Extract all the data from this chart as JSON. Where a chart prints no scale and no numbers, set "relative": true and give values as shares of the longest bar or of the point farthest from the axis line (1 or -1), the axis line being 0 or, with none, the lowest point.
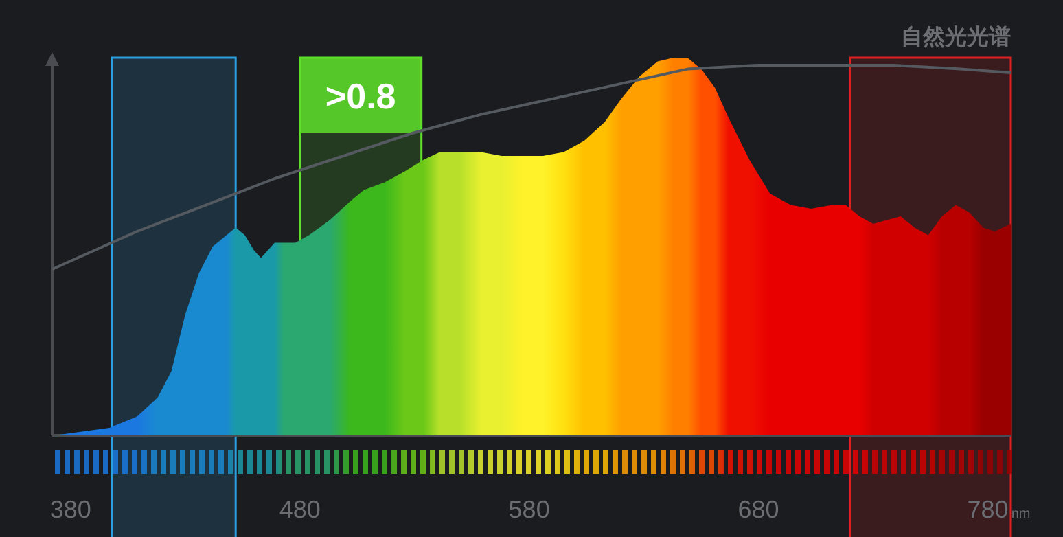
{
  "chart_data": {
    "type": "area",
    "relative": true,
    "xlim": [
      372,
      790
    ],
    "xticks": [
      380,
      480,
      580,
      680,
      780
    ],
    "xlabel": "nm",
    "series": [
      {
        "type": "area",
        "x": [
          373,
          385,
          397,
          409,
          418,
          424,
          430,
          436,
          442,
          448,
          452,
          456,
          460,
          463,
          466,
          469,
          473,
          478,
          484,
          493,
          502,
          508,
          517,
          526,
          534,
          541,
          550,
          559,
          568,
          577,
          586,
          595,
          604,
          613,
          620,
          628,
          636,
          643,
          649,
          655,
          661,
          667,
          676,
          685,
          694,
          703,
          712,
          718,
          724,
          730,
          736,
          742,
          748,
          754,
          760,
          766,
          772,
          778,
          783,
          790
        ],
        "values": [
          0.0,
          0.01,
          0.02,
          0.05,
          0.1,
          0.17,
          0.32,
          0.43,
          0.5,
          0.53,
          0.55,
          0.53,
          0.49,
          0.47,
          0.49,
          0.51,
          0.51,
          0.51,
          0.53,
          0.57,
          0.62,
          0.65,
          0.67,
          0.7,
          0.73,
          0.75,
          0.75,
          0.75,
          0.74,
          0.74,
          0.74,
          0.75,
          0.78,
          0.83,
          0.89,
          0.95,
          0.99,
          1.0,
          1.0,
          0.97,
          0.92,
          0.84,
          0.73,
          0.64,
          0.61,
          0.6,
          0.61,
          0.61,
          0.58,
          0.56,
          0.57,
          0.58,
          0.55,
          0.53,
          0.58,
          0.61,
          0.59,
          0.55,
          0.54,
          0.56
        ],
        "colors": [
          "#1a78e0",
          "#1a78e0",
          "#1a78e0",
          "#1a78e0",
          "#1a8ad0",
          "#1a8ad0",
          "#1a8ad0",
          "#1a8ad0",
          "#1a8ad0",
          "#1a8ad0",
          "#1a9aa8",
          "#1a9aa8",
          "#1a9aa8",
          "#1a9aa8",
          "#1a9aa8",
          "#1a9aa8",
          "#2aa870",
          "#2aa870",
          "#2aa870",
          "#2aa870",
          "#3cb81c",
          "#3cb81c",
          "#3cb81c",
          "#6cc818",
          "#6cc818",
          "#b8e02a",
          "#b8e02a",
          "#e8f030",
          "#e8f030",
          "#fff22a",
          "#fff22a",
          "#ffe010",
          "#ffc000",
          "#ffc000",
          "#ffa000",
          "#ffa000",
          "#ffa000",
          "#ff8000",
          "#ff8000",
          "#ff5000",
          "#ff5000",
          "#f01000",
          "#f01000",
          "#e80000",
          "#e80000",
          "#e80000",
          "#e80000",
          "#e80000",
          "#e80000",
          "#d00000",
          "#d00000",
          "#d00000",
          "#d00000",
          "#d00000",
          "#b80000",
          "#b80000",
          "#b80000",
          "#9a0000",
          "#9a0000",
          "#9a0000"
        ]
      },
      {
        "type": "line",
        "name": "自然光光谱",
        "color": "#555a60",
        "x": [
          372,
          409,
          439,
          469,
          499,
          529,
          559,
          589,
          619,
          649,
          679,
          709,
          739,
          768,
          790
        ],
        "values": [
          0.44,
          0.54,
          0.61,
          0.68,
          0.74,
          0.8,
          0.85,
          0.89,
          0.93,
          0.97,
          0.98,
          0.98,
          0.98,
          0.97,
          0.96
        ]
      }
    ],
    "bands": [
      {
        "axis": "x",
        "from": 480,
        "to": 533,
        "label": ">0.8",
        "color": "#5fe02a"
      },
      {
        "axis": "x",
        "from": 398,
        "to": 452,
        "color": "#2aa0e0"
      },
      {
        "axis": "x",
        "from": 720,
        "to": 790,
        "color": "#e02020"
      }
    ]
  }
}
